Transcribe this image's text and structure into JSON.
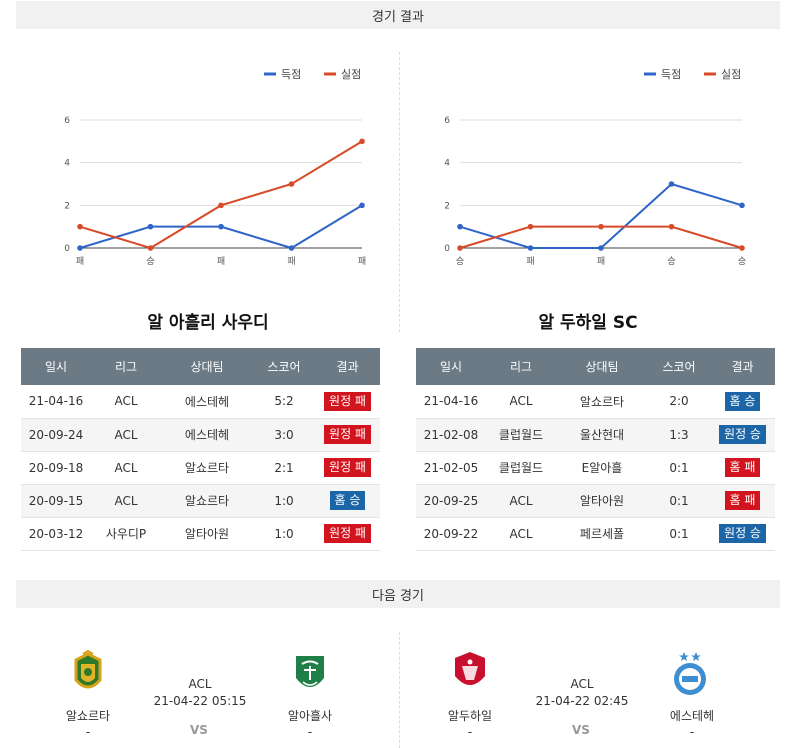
{
  "sections": {
    "results_title": "경기 결과",
    "next_title": "다음 경기"
  },
  "legend": {
    "score": "득점",
    "concede": "실점",
    "score_color": "#2f65c8",
    "concede_color": "#d84a28"
  },
  "charts": [
    {
      "chart_data": {
        "type": "line",
        "categories": [
          "패",
          "승",
          "패",
          "패",
          "패"
        ],
        "series": [
          {
            "name": "득점",
            "values": [
              0,
              1,
              1,
              0,
              2
            ]
          },
          {
            "name": "실점",
            "values": [
              1,
              0,
              2,
              3,
              5
            ]
          }
        ],
        "ylim": [
          0,
          6
        ],
        "yticks": [
          "0",
          "2",
          "4",
          "6"
        ],
        "legend_position": "top-right"
      }
    },
    {
      "chart_data": {
        "type": "line",
        "categories": [
          "승",
          "패",
          "패",
          "승",
          "승"
        ],
        "series": [
          {
            "name": "득점",
            "values": [
              1,
              0,
              0,
              3,
              2
            ]
          },
          {
            "name": "실점",
            "values": [
              0,
              1,
              1,
              1,
              0
            ]
          }
        ],
        "ylim": [
          0,
          6
        ],
        "yticks": [
          "0",
          "2",
          "4",
          "6"
        ],
        "legend_position": "top-right"
      }
    }
  ],
  "teams": [
    {
      "name": "알 아흘리 사우디",
      "headers": [
        "일시",
        "리그",
        "상대팀",
        "스코어",
        "결과"
      ],
      "rows": [
        {
          "date": "21-04-16",
          "league": "ACL",
          "opponent": "에스테헤",
          "score": "5:2",
          "result": "원정 패",
          "color": "red"
        },
        {
          "date": "20-09-24",
          "league": "ACL",
          "opponent": "에스테헤",
          "score": "3:0",
          "result": "원정 패",
          "color": "red"
        },
        {
          "date": "20-09-18",
          "league": "ACL",
          "opponent": "알쇼르타",
          "score": "2:1",
          "result": "원정 패",
          "color": "red"
        },
        {
          "date": "20-09-15",
          "league": "ACL",
          "opponent": "알쇼르타",
          "score": "1:0",
          "result": "홈 승",
          "color": "blue"
        },
        {
          "date": "20-03-12",
          "league": "사우디P",
          "opponent": "알타아원",
          "score": "1:0",
          "result": "원정 패",
          "color": "red"
        }
      ]
    },
    {
      "name": "알 두하일 SC",
      "headers": [
        "일시",
        "리그",
        "상대팀",
        "스코어",
        "결과"
      ],
      "rows": [
        {
          "date": "21-04-16",
          "league": "ACL",
          "opponent": "알쇼르타",
          "score": "2:0",
          "result": "홈 승",
          "color": "blue"
        },
        {
          "date": "21-02-08",
          "league": "클럽월드",
          "opponent": "울산현대",
          "score": "1:3",
          "result": "원정 승",
          "color": "blue"
        },
        {
          "date": "21-02-05",
          "league": "클럽월드",
          "opponent": "E알아흘",
          "score": "0:1",
          "result": "홈 패",
          "color": "red"
        },
        {
          "date": "20-09-25",
          "league": "ACL",
          "opponent": "알타아원",
          "score": "0:1",
          "result": "홈 패",
          "color": "red"
        },
        {
          "date": "20-09-22",
          "league": "ACL",
          "opponent": "페르세폴",
          "score": "0:1",
          "result": "원정 승",
          "color": "blue"
        }
      ]
    }
  ],
  "next_matches": [
    {
      "home": "알쇼르타",
      "away": "알아흘사",
      "league": "ACL",
      "datetime": "21-04-22 05:15",
      "vs": "VS",
      "home_extra": "-",
      "away_extra": "-"
    },
    {
      "home": "알두하일",
      "away": "에스테헤",
      "league": "ACL",
      "datetime": "21-04-22 02:45",
      "vs": "VS",
      "home_extra": "-",
      "away_extra": "-"
    }
  ]
}
